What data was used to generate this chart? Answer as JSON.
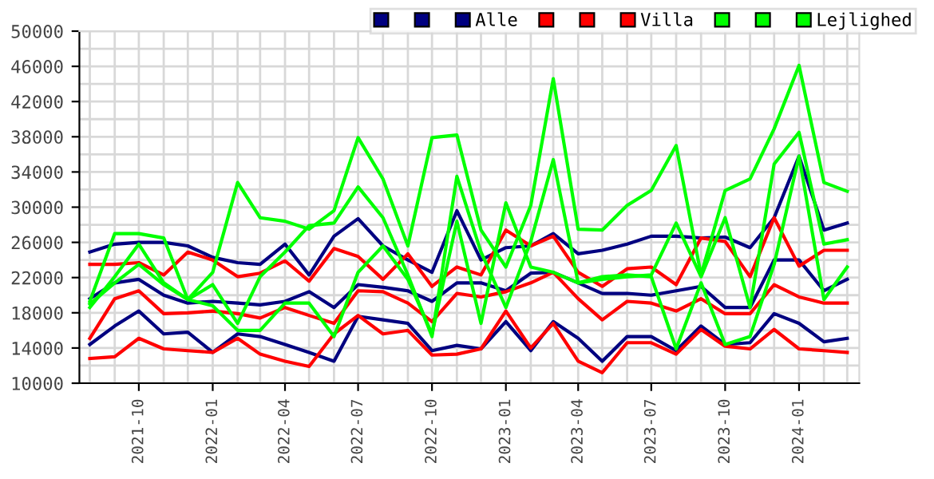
{
  "chart_data": {
    "type": "line",
    "x": [
      "2021-08",
      "2021-09",
      "2021-10",
      "2021-11",
      "2021-12",
      "2022-01",
      "2022-02",
      "2022-03",
      "2022-04",
      "2022-05",
      "2022-06",
      "2022-07",
      "2022-08",
      "2022-09",
      "2022-10",
      "2022-11",
      "2022-12",
      "2023-01",
      "2023-02",
      "2023-03",
      "2023-04",
      "2023-05",
      "2023-06",
      "2023-07",
      "2023-08",
      "2023-09",
      "2023-10",
      "2023-11",
      "2023-12",
      "2024-01",
      "2024-02",
      "2024-03"
    ],
    "series": [
      {
        "color": "#000080",
        "values": [
          24900,
          25800,
          26000,
          26000,
          25600,
          24300,
          23700,
          23500,
          25800,
          22300,
          26700,
          28700,
          25600,
          24000,
          22600,
          29600,
          24000,
          25400,
          25600,
          27000,
          24700,
          25100,
          25800,
          26700,
          26700,
          26500,
          26600,
          25400,
          28800,
          35800,
          27400,
          28200
        ]
      },
      {
        "color": "#000080",
        "values": [
          19600,
          21400,
          21800,
          20000,
          19100,
          19300,
          19100,
          18900,
          19300,
          20400,
          18600,
          21200,
          20900,
          20500,
          19300,
          21400,
          21400,
          20500,
          22500,
          22600,
          21400,
          20200,
          20200,
          20000,
          20500,
          21000,
          18600,
          18600,
          24000,
          24000,
          20500,
          21800
        ]
      },
      {
        "name": "Alle",
        "color": "#000080",
        "values": [
          14400,
          16500,
          18200,
          15600,
          15800,
          13500,
          15600,
          15300,
          14400,
          13500,
          12500,
          17600,
          17200,
          16800,
          13700,
          14300,
          13900,
          17000,
          13700,
          17000,
          15100,
          12500,
          15300,
          15300,
          13700,
          16500,
          14400,
          14600,
          17900,
          16800,
          14700,
          15100
        ]
      },
      {
        "color": "#ff0000",
        "values": [
          23500,
          23500,
          23700,
          22300,
          24900,
          24000,
          22100,
          22500,
          23900,
          21600,
          25300,
          24400,
          21800,
          24700,
          21000,
          23200,
          22300,
          27400,
          25600,
          26700,
          22600,
          21000,
          23000,
          23200,
          21200,
          26500,
          26100,
          22100,
          28800,
          23300,
          25100,
          25100
        ]
      },
      {
        "color": "#ff0000",
        "values": [
          15100,
          19600,
          20500,
          17900,
          18000,
          18200,
          17900,
          17400,
          18600,
          17700,
          16800,
          20500,
          20400,
          19100,
          17000,
          20200,
          19800,
          20400,
          21400,
          22600,
          19600,
          17200,
          19300,
          19100,
          18200,
          19600,
          17900,
          17900,
          21200,
          19800,
          19100,
          19100
        ]
      },
      {
        "name": "Villa",
        "color": "#ff0000",
        "values": [
          12800,
          13000,
          15100,
          13900,
          13700,
          13500,
          15100,
          13300,
          12500,
          11900,
          15600,
          17700,
          15600,
          16000,
          13200,
          13300,
          13900,
          18200,
          14000,
          16800,
          12500,
          11200,
          14600,
          14600,
          13300,
          16100,
          14200,
          13900,
          16100,
          13900,
          13700,
          13500
        ]
      },
      {
        "color": "#00ff00",
        "values": [
          19300,
          27000,
          27000,
          26500,
          19500,
          22600,
          32800,
          28800,
          28400,
          27500,
          29600,
          37900,
          33200,
          25600,
          37900,
          38200,
          27400,
          23200,
          30200,
          44600,
          27500,
          27400,
          30200,
          31900,
          37000,
          22300,
          31900,
          33200,
          38900,
          46100,
          32800,
          31800
        ]
      },
      {
        "color": "#00ff00",
        "values": [
          19000,
          21400,
          23500,
          21200,
          19500,
          21200,
          16800,
          22100,
          24900,
          27900,
          28200,
          32300,
          28800,
          22300,
          15300,
          33500,
          24900,
          18600,
          26100,
          35400,
          21400,
          21800,
          22100,
          22300,
          28200,
          22100,
          28800,
          18600,
          34900,
          38500,
          25800,
          26300
        ]
      },
      {
        "name": "Lejlighed",
        "color": "#00ff00",
        "values": [
          18600,
          22100,
          25800,
          21400,
          19500,
          18800,
          16000,
          16000,
          19100,
          19100,
          15300,
          22600,
          25600,
          21800,
          15600,
          28400,
          16800,
          30500,
          23200,
          22600,
          21400,
          22100,
          22300,
          22100,
          13900,
          21400,
          14400,
          15300,
          23500,
          35800,
          19500,
          23200
        ]
      }
    ],
    "xlim": [
      "2021-07-19",
      "2024-03-16"
    ],
    "xticks": [
      {
        "value": "2021-10",
        "label": "2021-10"
      },
      {
        "value": "2022-01",
        "label": "2022-01"
      },
      {
        "value": "2022-04",
        "label": "2022-04"
      },
      {
        "value": "2022-07",
        "label": "2022-07"
      },
      {
        "value": "2022-10",
        "label": "2022-10"
      },
      {
        "value": "2023-01",
        "label": "2023-01"
      },
      {
        "value": "2023-04",
        "label": "2023-04"
      },
      {
        "value": "2023-07",
        "label": "2023-07"
      },
      {
        "value": "2023-10",
        "label": "2023-10"
      },
      {
        "value": "2024-01",
        "label": "2024-01"
      }
    ],
    "ylim": [
      10000,
      50000
    ],
    "yticks": [
      10000,
      14000,
      18000,
      22000,
      26000,
      30000,
      34000,
      38000,
      42000,
      46000,
      50000
    ],
    "grid": true,
    "legend": "top right",
    "marker": "none",
    "line_style": "solid"
  }
}
